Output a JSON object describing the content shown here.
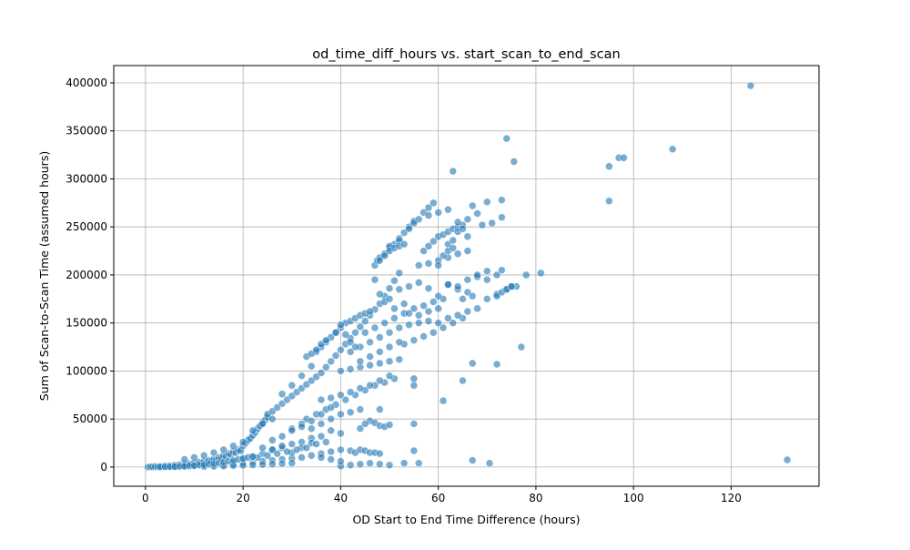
{
  "chart_data": {
    "type": "scatter",
    "title": "od_time_diff_hours vs. start_scan_to_end_scan",
    "xlabel": "OD Start to End Time Difference (hours)",
    "ylabel": "Sum of Scan-to-Scan Time (assumed hours)",
    "xlim": [
      -6.5,
      138
    ],
    "ylim": [
      -20000,
      418000
    ],
    "xticks": [
      0,
      20,
      40,
      60,
      80,
      100,
      120
    ],
    "yticks": [
      0,
      50000,
      100000,
      150000,
      200000,
      250000,
      300000,
      350000,
      400000
    ],
    "grid": true,
    "point_color": "#1f77b4",
    "point_opacity": 0.6,
    "points": [
      [
        0.5,
        0
      ],
      [
        1,
        200
      ],
      [
        1.5,
        100
      ],
      [
        2,
        500
      ],
      [
        2.5,
        300
      ],
      [
        3,
        800
      ],
      [
        3.5,
        400
      ],
      [
        4,
        1200
      ],
      [
        4.5,
        600
      ],
      [
        5,
        1500
      ],
      [
        5.5,
        900
      ],
      [
        6,
        2000
      ],
      [
        6.5,
        1200
      ],
      [
        7,
        2500
      ],
      [
        7.5,
        1800
      ],
      [
        8,
        3000
      ],
      [
        8.5,
        2200
      ],
      [
        9,
        3500
      ],
      [
        9.5,
        2800
      ],
      [
        10,
        4000
      ],
      [
        10.5,
        3200
      ],
      [
        11,
        5000
      ],
      [
        11.5,
        4000
      ],
      [
        12,
        6000
      ],
      [
        12.5,
        5000
      ],
      [
        13,
        7000
      ],
      [
        13.5,
        6000
      ],
      [
        14,
        8000
      ],
      [
        14.5,
        7000
      ],
      [
        15,
        10000
      ],
      [
        15.5,
        9000
      ],
      [
        16,
        12000
      ],
      [
        16.5,
        11000
      ],
      [
        17,
        14000
      ],
      [
        17.5,
        13000
      ],
      [
        18,
        16000
      ],
      [
        18.5,
        15000
      ],
      [
        19,
        18000
      ],
      [
        19.5,
        17000
      ],
      [
        20,
        22000
      ],
      [
        20.5,
        25000
      ],
      [
        21,
        28000
      ],
      [
        21.5,
        30000
      ],
      [
        22,
        33000
      ],
      [
        22.5,
        36000
      ],
      [
        23,
        40000
      ],
      [
        23.5,
        43000
      ],
      [
        24,
        46000
      ],
      [
        24.5,
        49000
      ],
      [
        25,
        52000
      ],
      [
        8,
        8000
      ],
      [
        10,
        10000
      ],
      [
        12,
        12000
      ],
      [
        14,
        15000
      ],
      [
        16,
        18000
      ],
      [
        18,
        22000
      ],
      [
        20,
        26000
      ],
      [
        22,
        38000
      ],
      [
        24,
        45000
      ],
      [
        26,
        50000
      ],
      [
        6,
        500
      ],
      [
        8,
        700
      ],
      [
        10,
        1000
      ],
      [
        12,
        1500
      ],
      [
        14,
        2000
      ],
      [
        16,
        2500
      ],
      [
        18,
        3000
      ],
      [
        20,
        4000
      ],
      [
        22,
        5000
      ],
      [
        24,
        6000
      ],
      [
        26,
        7000
      ],
      [
        28,
        8000
      ],
      [
        30,
        9000
      ],
      [
        32,
        10000
      ],
      [
        34,
        12000
      ],
      [
        36,
        14000
      ],
      [
        38,
        16000
      ],
      [
        40,
        18000
      ],
      [
        18,
        5000
      ],
      [
        20,
        8000
      ],
      [
        22,
        10000
      ],
      [
        24,
        14000
      ],
      [
        26,
        18000
      ],
      [
        28,
        20000
      ],
      [
        30,
        24000
      ],
      [
        32,
        26000
      ],
      [
        34,
        30000
      ],
      [
        36,
        32000
      ],
      [
        25,
        55000
      ],
      [
        26,
        58000
      ],
      [
        27,
        62000
      ],
      [
        28,
        66000
      ],
      [
        29,
        70000
      ],
      [
        30,
        74000
      ],
      [
        31,
        78000
      ],
      [
        32,
        82000
      ],
      [
        33,
        86000
      ],
      [
        34,
        90000
      ],
      [
        35,
        94000
      ],
      [
        36,
        98000
      ],
      [
        37,
        104000
      ],
      [
        38,
        110000
      ],
      [
        39,
        116000
      ],
      [
        40,
        122000
      ],
      [
        41,
        128000
      ],
      [
        42,
        134000
      ],
      [
        43,
        140000
      ],
      [
        44,
        146000
      ],
      [
        45,
        152000
      ],
      [
        46,
        158000
      ],
      [
        47,
        164000
      ],
      [
        48,
        170000
      ],
      [
        49,
        178000
      ],
      [
        50,
        186000
      ],
      [
        51,
        194000
      ],
      [
        52,
        202000
      ],
      [
        28,
        76000
      ],
      [
        30,
        85000
      ],
      [
        32,
        95000
      ],
      [
        34,
        105000
      ],
      [
        35,
        120000
      ],
      [
        36,
        125000
      ],
      [
        37,
        130000
      ],
      [
        38,
        135000
      ],
      [
        39,
        140000
      ],
      [
        40,
        145000
      ],
      [
        41,
        150000
      ],
      [
        42,
        152000
      ],
      [
        43,
        155000
      ],
      [
        44,
        158000
      ],
      [
        45,
        160000
      ],
      [
        46,
        162000
      ],
      [
        47,
        210000
      ],
      [
        47.5,
        215000
      ],
      [
        48,
        218000
      ],
      [
        49,
        222000
      ],
      [
        50,
        228000
      ],
      [
        51,
        232000
      ],
      [
        52,
        238000
      ],
      [
        53,
        244000
      ],
      [
        54,
        250000
      ],
      [
        55,
        256000
      ],
      [
        56,
        258000
      ],
      [
        57,
        265000
      ],
      [
        58,
        270000
      ],
      [
        59,
        275000
      ],
      [
        50,
        230000
      ],
      [
        52,
        236000
      ],
      [
        54,
        248000
      ],
      [
        55,
        254000
      ],
      [
        33,
        50000
      ],
      [
        35,
        55000
      ],
      [
        37,
        60000
      ],
      [
        39,
        65000
      ],
      [
        41,
        70000
      ],
      [
        43,
        75000
      ],
      [
        45,
        80000
      ],
      [
        47,
        85000
      ],
      [
        49,
        88000
      ],
      [
        51,
        92000
      ],
      [
        38,
        50000
      ],
      [
        40,
        55000
      ],
      [
        42,
        57000
      ],
      [
        44,
        60000
      ],
      [
        46,
        48000
      ],
      [
        48,
        60000
      ],
      [
        36,
        70000
      ],
      [
        38,
        72000
      ],
      [
        40,
        75000
      ],
      [
        42,
        78000
      ],
      [
        44,
        82000
      ],
      [
        46,
        85000
      ],
      [
        48,
        90000
      ],
      [
        50,
        95000
      ],
      [
        40,
        100000
      ],
      [
        42,
        102000
      ],
      [
        44,
        104000
      ],
      [
        46,
        106000
      ],
      [
        48,
        108000
      ],
      [
        50,
        110000
      ],
      [
        52,
        112000
      ],
      [
        42,
        120000
      ],
      [
        44,
        125000
      ],
      [
        46,
        130000
      ],
      [
        48,
        135000
      ],
      [
        50,
        140000
      ],
      [
        52,
        145000
      ],
      [
        54,
        148000
      ],
      [
        56,
        150000
      ],
      [
        58,
        152000
      ],
      [
        45,
        140000
      ],
      [
        47,
        145000
      ],
      [
        49,
        150000
      ],
      [
        51,
        155000
      ],
      [
        53,
        160000
      ],
      [
        55,
        165000
      ],
      [
        57,
        168000
      ],
      [
        59,
        172000
      ],
      [
        61,
        175000
      ],
      [
        53,
        128000
      ],
      [
        55,
        132000
      ],
      [
        57,
        136000
      ],
      [
        59,
        140000
      ],
      [
        61,
        145000
      ],
      [
        63,
        150000
      ],
      [
        65,
        155000
      ],
      [
        52,
        185000
      ],
      [
        54,
        188000
      ],
      [
        56,
        192000
      ],
      [
        58,
        186000
      ],
      [
        60,
        178000
      ],
      [
        62,
        190000
      ],
      [
        64,
        185000
      ],
      [
        66,
        182000
      ],
      [
        56,
        210000
      ],
      [
        58,
        212000
      ],
      [
        60,
        215000
      ],
      [
        62,
        218000
      ],
      [
        64,
        222000
      ],
      [
        66,
        225000
      ],
      [
        57,
        225000
      ],
      [
        58,
        230000
      ],
      [
        59,
        235000
      ],
      [
        60,
        240000
      ],
      [
        61,
        242000
      ],
      [
        62,
        245000
      ],
      [
        63,
        248000
      ],
      [
        64,
        250000
      ],
      [
        65,
        252000
      ],
      [
        58,
        262000
      ],
      [
        60,
        265000
      ],
      [
        62,
        268000
      ],
      [
        64,
        245000
      ],
      [
        66,
        258000
      ],
      [
        60,
        150000
      ],
      [
        62,
        155000
      ],
      [
        64,
        158000
      ],
      [
        66,
        162000
      ],
      [
        68,
        165000
      ],
      [
        62,
        190000
      ],
      [
        64,
        188000
      ],
      [
        66,
        195000
      ],
      [
        68,
        198000
      ],
      [
        70,
        195000
      ],
      [
        72,
        180000
      ],
      [
        74,
        185000
      ],
      [
        76,
        188000
      ],
      [
        65,
        175000
      ],
      [
        67,
        178000
      ],
      [
        70,
        175000
      ],
      [
        72,
        178000
      ],
      [
        73,
        182000
      ],
      [
        74,
        185000
      ],
      [
        75,
        188000
      ],
      [
        68,
        200000
      ],
      [
        70,
        204000
      ],
      [
        72,
        200000
      ],
      [
        73,
        205000
      ],
      [
        75,
        188000
      ],
      [
        78,
        200000
      ],
      [
        81,
        202000
      ],
      [
        67,
        272000
      ],
      [
        68,
        264000
      ],
      [
        70,
        276000
      ],
      [
        73,
        278000
      ],
      [
        73,
        260000
      ],
      [
        69,
        252000
      ],
      [
        71,
        254000
      ],
      [
        63,
        308000
      ],
      [
        74,
        342000
      ],
      [
        75.5,
        318000
      ],
      [
        95,
        313000
      ],
      [
        95,
        277000
      ],
      [
        97,
        322000
      ],
      [
        98,
        322000
      ],
      [
        108,
        331000
      ],
      [
        124,
        397000
      ],
      [
        77,
        125000
      ],
      [
        72,
        107000
      ],
      [
        67,
        108000
      ],
      [
        65,
        90000
      ],
      [
        61,
        69000
      ],
      [
        55,
        92000
      ],
      [
        55,
        85000
      ],
      [
        55,
        45000
      ],
      [
        55,
        17000
      ],
      [
        56,
        4000
      ],
      [
        53,
        4000
      ],
      [
        67,
        7000
      ],
      [
        70.5,
        4000
      ],
      [
        131.5,
        7500
      ],
      [
        42,
        17000
      ],
      [
        43,
        15000
      ],
      [
        44,
        18000
      ],
      [
        45,
        17000
      ],
      [
        46,
        15000
      ],
      [
        47,
        15000
      ],
      [
        48,
        14000
      ],
      [
        40,
        1000
      ],
      [
        42,
        2000
      ],
      [
        44,
        3000
      ],
      [
        46,
        4000
      ],
      [
        48,
        3000
      ],
      [
        50,
        2000
      ],
      [
        44,
        40000
      ],
      [
        45,
        45000
      ],
      [
        47,
        46000
      ],
      [
        48,
        43000
      ],
      [
        49,
        42000
      ],
      [
        50,
        44000
      ],
      [
        30,
        40000
      ],
      [
        32,
        45000
      ],
      [
        34,
        40000
      ],
      [
        36,
        45000
      ],
      [
        38,
        38000
      ],
      [
        40,
        35000
      ],
      [
        26,
        18000
      ],
      [
        28,
        22000
      ],
      [
        30,
        15000
      ],
      [
        32,
        20000
      ],
      [
        34,
        25000
      ],
      [
        36,
        10000
      ],
      [
        38,
        8000
      ],
      [
        40,
        6000
      ],
      [
        23,
        10000
      ],
      [
        25,
        12000
      ],
      [
        27,
        14000
      ],
      [
        29,
        16000
      ],
      [
        31,
        18000
      ],
      [
        33,
        20000
      ],
      [
        35,
        24000
      ],
      [
        37,
        26000
      ],
      [
        12,
        500
      ],
      [
        14,
        800
      ],
      [
        16,
        1000
      ],
      [
        18,
        1500
      ],
      [
        20,
        1800
      ],
      [
        22,
        2200
      ],
      [
        24,
        2600
      ],
      [
        26,
        3000
      ],
      [
        28,
        3500
      ],
      [
        30,
        4000
      ],
      [
        3,
        100
      ],
      [
        4,
        200
      ],
      [
        5,
        300
      ],
      [
        6,
        400
      ],
      [
        7,
        600
      ],
      [
        8,
        900
      ],
      [
        9,
        1200
      ],
      [
        10,
        1600
      ],
      [
        11,
        2000
      ],
      [
        12,
        2500
      ],
      [
        13,
        3000
      ],
      [
        14,
        3500
      ],
      [
        15,
        4000
      ],
      [
        16,
        5000
      ],
      [
        17,
        6000
      ],
      [
        18,
        7000
      ],
      [
        19,
        8000
      ],
      [
        20,
        9000
      ],
      [
        21,
        10000
      ],
      [
        22,
        11000
      ],
      [
        24,
        20000
      ],
      [
        26,
        28000
      ],
      [
        28,
        32000
      ],
      [
        30,
        38000
      ],
      [
        32,
        42000
      ],
      [
        34,
        48000
      ],
      [
        36,
        55000
      ],
      [
        38,
        62000
      ],
      [
        44,
        110000
      ],
      [
        46,
        115000
      ],
      [
        48,
        120000
      ],
      [
        50,
        125000
      ],
      [
        52,
        130000
      ],
      [
        39,
        140000
      ],
      [
        40,
        148000
      ],
      [
        41,
        138000
      ],
      [
        42,
        130000
      ],
      [
        43,
        125000
      ],
      [
        33,
        115000
      ],
      [
        34,
        118000
      ],
      [
        35,
        122000
      ],
      [
        36,
        128000
      ],
      [
        37,
        132000
      ],
      [
        47,
        195000
      ],
      [
        48,
        180000
      ],
      [
        49,
        172000
      ],
      [
        50,
        175000
      ],
      [
        51,
        165000
      ],
      [
        53,
        170000
      ],
      [
        54,
        160000
      ],
      [
        56,
        158000
      ],
      [
        58,
        162000
      ],
      [
        60,
        165000
      ],
      [
        62,
        232000
      ],
      [
        63,
        236000
      ],
      [
        64,
        255000
      ],
      [
        65,
        248000
      ],
      [
        66,
        240000
      ],
      [
        60,
        210000
      ],
      [
        61,
        220000
      ],
      [
        62,
        225000
      ],
      [
        63,
        228000
      ],
      [
        48,
        215000
      ],
      [
        49,
        220000
      ],
      [
        50,
        225000
      ],
      [
        51,
        228000
      ],
      [
        52,
        230000
      ],
      [
        53,
        232000
      ]
    ]
  }
}
